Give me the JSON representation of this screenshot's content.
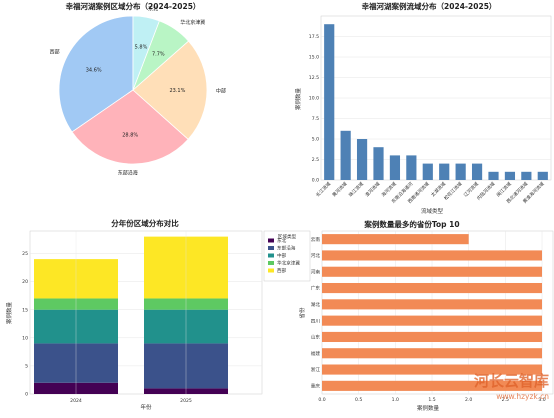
{
  "chart_data": [
    {
      "type": "pie",
      "title": "幸福河湖案例区域分布（2024-2025）",
      "labels": [
        "西部",
        "东部沿海",
        "中部",
        "华北京津冀",
        "东北"
      ],
      "values": [
        34.6,
        28.8,
        23.1,
        7.7,
        5.8
      ],
      "pct_labels": [
        "34.6%",
        "28.8%",
        "23.1%",
        "7.7%",
        "5.8%"
      ],
      "colors": [
        "#a1c9f4",
        "#ffb3ba",
        "#ffdfb8",
        "#b9f5c5",
        "#bff0f4"
      ]
    },
    {
      "type": "bar",
      "title": "幸福河湖案例流域分布（2024-2025）",
      "xlabel": "流域类型",
      "ylabel": "案例数量",
      "categories": [
        "长江流域",
        "黄河流域",
        "珠江流域",
        "淮河流域",
        "海河流域",
        "东南沿海诸河",
        "西南诸河流域",
        "太湖流域",
        "松花江流域",
        "辽河流域",
        "内陆河流域",
        "闽江流域",
        "西北诸河流域",
        "黄淮海河流域"
      ],
      "values": [
        19,
        6,
        5,
        4,
        3,
        3,
        2,
        2,
        2,
        2,
        1,
        1,
        1,
        1
      ],
      "yticks": [
        "0.0",
        "2.5",
        "5.0",
        "7.5",
        "10.0",
        "12.5",
        "15.0",
        "17.5"
      ],
      "ylim": [
        0,
        20
      ],
      "color": "#4e81b5",
      "grid": true
    },
    {
      "type": "bar",
      "stacked": true,
      "title": "分年份区域分布对比",
      "xlabel": "年份",
      "ylabel": "案例数量",
      "categories": [
        "2024",
        "2025"
      ],
      "series": [
        {
          "name": "东北",
          "values": [
            2,
            1
          ],
          "color": "#440154"
        },
        {
          "name": "东部沿海",
          "values": [
            7,
            8
          ],
          "color": "#3b528b"
        },
        {
          "name": "中部",
          "values": [
            6,
            6
          ],
          "color": "#21918c"
        },
        {
          "name": "华北京津冀",
          "values": [
            2,
            2
          ],
          "color": "#5ec962"
        },
        {
          "name": "西部",
          "values": [
            7,
            11
          ],
          "color": "#fde725"
        }
      ],
      "legend_title": "区域类型",
      "legend_position": "outside-right",
      "yticks": [
        "0",
        "5",
        "10",
        "15",
        "20",
        "25"
      ],
      "ylim": [
        0,
        29
      ],
      "grid": true
    },
    {
      "type": "bar",
      "orientation": "horizontal",
      "title": "案例数量最多的省份Top 10",
      "xlabel": "案例数量",
      "ylabel": "省份",
      "categories": [
        "云南",
        "河北",
        "河南",
        "广东",
        "湖北",
        "四川",
        "山东",
        "福建",
        "浙江",
        "重庆"
      ],
      "values": [
        2,
        3,
        3,
        3,
        3,
        3,
        3,
        3,
        3,
        3
      ],
      "xticks": [
        "0.0",
        "0.5",
        "1.0",
        "1.5",
        "2.0",
        "2.5",
        "3.0"
      ],
      "xlim": [
        0,
        3.15
      ],
      "color": "#f28a55",
      "grid": true
    }
  ],
  "watermark": {
    "title": "河长云智库",
    "url": "www.hzyzk.cn"
  }
}
